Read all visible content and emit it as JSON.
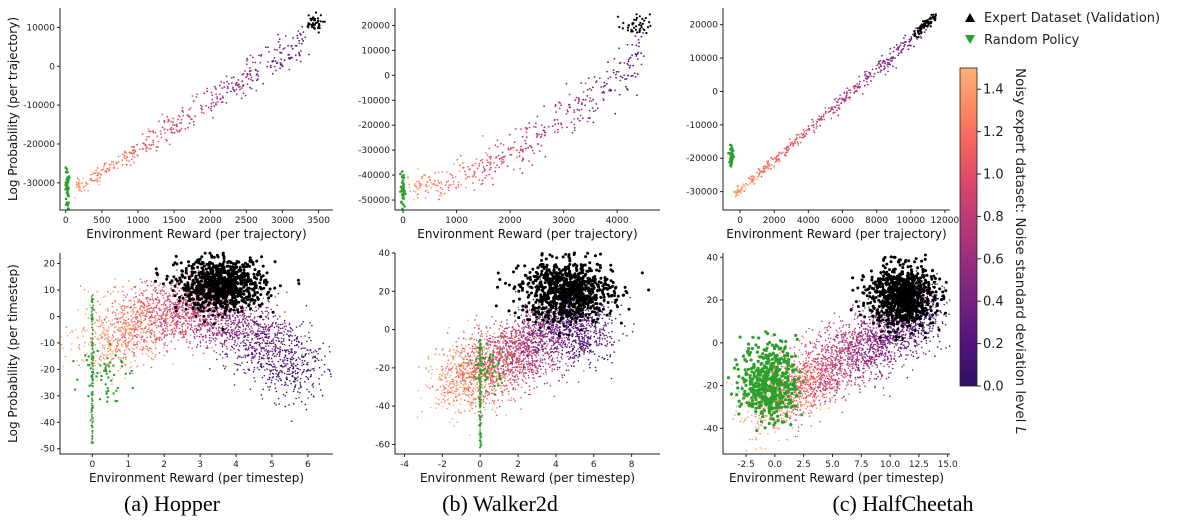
{
  "legend": {
    "expert_label": "Expert Dataset (Validation)",
    "random_label": "Random Policy",
    "expert_color": "#000000",
    "random_color": "#2ca02c",
    "expert_marker": "triangle-up",
    "random_marker": "triangle-down"
  },
  "colorbar": {
    "label": "Noisy expert dataset: Noise standard deviation level",
    "label_symbol": "L",
    "range": [
      0.0,
      1.5
    ],
    "ticks": [
      "0.0",
      "0.2",
      "0.4",
      "0.6",
      "0.8",
      "1.0",
      "1.2",
      "1.4"
    ],
    "colormap": "magma",
    "stops": [
      "#2d1160",
      "#51127c",
      "#721f81",
      "#932b80",
      "#b73779",
      "#d8456c",
      "#f1605d",
      "#fc8961",
      "#feb078"
    ]
  },
  "captions": [
    "(a) Hopper",
    "(b) Walker2d",
    "(c) HalfCheetah"
  ],
  "chart_data": [
    {
      "type": "scatter",
      "panel": "hopper-trajectory",
      "xlabel": "Environment Reward (per trajectory)",
      "ylabel": "Log Probability (per trajectory)",
      "xlim": [
        -80,
        3700
      ],
      "ylim": [
        -37000,
        15000
      ],
      "xticks": [
        0,
        500,
        1000,
        1500,
        2000,
        2500,
        3000,
        3500
      ],
      "yticks": [
        -30000,
        -20000,
        -10000,
        0,
        10000
      ],
      "series": [
        {
          "name": "Noisy expert",
          "shape": "diagonal",
          "from": [
            150,
            -31500,
            1.45
          ],
          "to": [
            3350,
            7000,
            0.2
          ],
          "spread_y": 2500
        },
        {
          "name": "Expert Dataset (Validation)",
          "shape": "cluster",
          "center": [
            3420,
            11000
          ],
          "sx": 70,
          "sy": 1200
        },
        {
          "name": "Random Policy",
          "shape": "vertical",
          "center": [
            20,
            -31500
          ],
          "sx": 12,
          "sy": 2800
        }
      ]
    },
    {
      "type": "scatter",
      "panel": "walker2d-trajectory",
      "xlabel": "Environment Reward (per trajectory)",
      "ylabel": "",
      "xlim": [
        -150,
        4800
      ],
      "ylim": [
        -54000,
        27000
      ],
      "xticks": [
        0,
        1000,
        2000,
        3000,
        4000
      ],
      "yticks": [
        -50000,
        -40000,
        -30000,
        -20000,
        -10000,
        0,
        10000,
        20000
      ],
      "series": [
        {
          "name": "Noisy expert",
          "shape": "curve",
          "from": [
            100,
            -45000,
            1.45
          ],
          "to": [
            4500,
            10000,
            0.2
          ],
          "spread_y": 6000
        },
        {
          "name": "Expert Dataset (Validation)",
          "shape": "cluster",
          "center": [
            4350,
            20000
          ],
          "sx": 130,
          "sy": 2200
        },
        {
          "name": "Random Policy",
          "shape": "vertical",
          "center": [
            0,
            -46000
          ],
          "sx": 20,
          "sy": 3500
        }
      ]
    },
    {
      "type": "scatter",
      "panel": "halfcheetah-trajectory",
      "xlabel": "Environment Reward (per trajectory)",
      "ylabel": "",
      "xlim": [
        -1000,
        12300
      ],
      "ylim": [
        -35500,
        25000
      ],
      "xticks": [
        0,
        2000,
        4000,
        6000,
        8000,
        10000,
        12000
      ],
      "yticks": [
        -30000,
        -20000,
        -10000,
        0,
        10000,
        20000
      ],
      "series": [
        {
          "name": "Noisy expert",
          "shape": "diagonal",
          "from": [
            -300,
            -31000,
            1.45
          ],
          "to": [
            11000,
            20000,
            0.2
          ],
          "spread_y": 1500
        },
        {
          "name": "Expert Dataset (Validation)",
          "shape": "diagonal-black",
          "from": [
            10200,
            17000
          ],
          "to": [
            11500,
            22500
          ],
          "spread_y": 800
        },
        {
          "name": "Random Policy",
          "shape": "vertical",
          "center": [
            -500,
            -19000
          ],
          "sx": 60,
          "sy": 1800
        }
      ]
    },
    {
      "type": "scatter",
      "panel": "hopper-timestep",
      "xlabel": "Environment Reward (per timestep)",
      "ylabel": "Log Probability (per timestep)",
      "xlim": [
        -0.9,
        6.7
      ],
      "ylim": [
        -52,
        24
      ],
      "xticks": [
        0,
        1,
        2,
        3,
        4,
        5,
        6
      ],
      "yticks": [
        -50,
        -40,
        -30,
        -20,
        -10,
        0,
        10,
        20
      ],
      "series": [
        {
          "name": "Noisy expert",
          "shape": "cloud-hopper"
        },
        {
          "name": "Expert Dataset (Validation)",
          "shape": "cluster",
          "center": [
            3.6,
            12
          ],
          "sx": 0.6,
          "sy": 5
        },
        {
          "name": "Random Policy",
          "shape": "spike",
          "center": [
            0,
            -18
          ],
          "range": [
            -48,
            8
          ]
        }
      ]
    },
    {
      "type": "scatter",
      "panel": "walker2d-timestep",
      "xlabel": "Environment Reward (per timestep)",
      "ylabel": "",
      "xlim": [
        -4.5,
        9.5
      ],
      "ylim": [
        -65,
        40
      ],
      "xticks": [
        -4,
        -2,
        0,
        2,
        4,
        6,
        8
      ],
      "yticks": [
        -60,
        -40,
        -20,
        0,
        20,
        40
      ],
      "series": [
        {
          "name": "Noisy expert",
          "shape": "cloud-walker"
        },
        {
          "name": "Expert Dataset (Validation)",
          "shape": "cluster",
          "center": [
            4.6,
            20
          ],
          "sx": 1.2,
          "sy": 8
        },
        {
          "name": "Random Policy",
          "shape": "spike",
          "center": [
            0,
            -25
          ],
          "range": [
            -62,
            -5
          ]
        }
      ]
    },
    {
      "type": "scatter",
      "panel": "halfcheetah-timestep",
      "xlabel": "Environment Reward (per timestep)",
      "ylabel": "",
      "xlim": [
        -4.5,
        15.2
      ],
      "ylim": [
        -52,
        42
      ],
      "xticks": [
        "-2.5",
        "0.0",
        "2.5",
        "5.0",
        "7.5",
        "10.0",
        "12.5",
        "15.0"
      ],
      "yticks": [
        -40,
        -20,
        0,
        20,
        40
      ],
      "series": [
        {
          "name": "Noisy expert",
          "shape": "cloud-cheetah"
        },
        {
          "name": "Expert Dataset (Validation)",
          "shape": "cluster",
          "center": [
            11,
            22
          ],
          "sx": 1.4,
          "sy": 7
        },
        {
          "name": "Random Policy",
          "shape": "blob",
          "center": [
            -0.5,
            -18
          ],
          "sx": 1.2,
          "sy": 9
        }
      ]
    }
  ]
}
